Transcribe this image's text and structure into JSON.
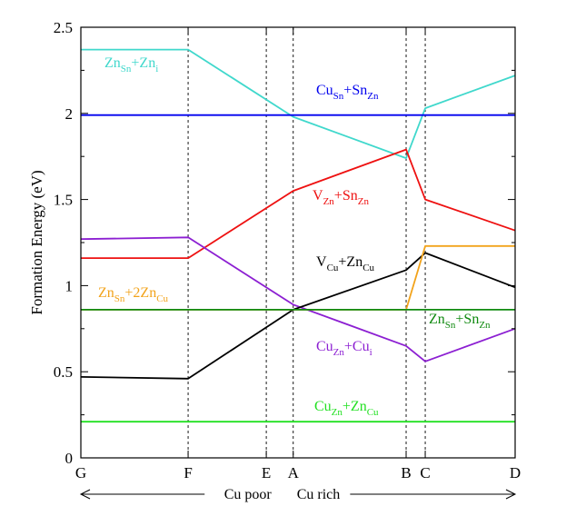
{
  "chart_data": {
    "type": "line",
    "ylabel": "Formation Energy (eV)",
    "ylim": [
      0,
      2.5
    ],
    "yticks": [
      0,
      0.5,
      1,
      1.5,
      2,
      2.5
    ],
    "ytick_labels": [
      "0",
      "0.5",
      "1",
      "1.5",
      "2",
      "2.5"
    ],
    "x_points": [
      {
        "label": "G",
        "pos": 0
      },
      {
        "label": "F",
        "pos": 0.247
      },
      {
        "label": "E",
        "pos": 0.427
      },
      {
        "label": "A",
        "pos": 0.489
      },
      {
        "label": "B",
        "pos": 0.749
      },
      {
        "label": "C",
        "pos": 0.793
      },
      {
        "label": "D",
        "pos": 1
      }
    ],
    "vlines_at": [
      "F",
      "E",
      "A",
      "B",
      "C"
    ],
    "direction_labels": {
      "left": "Cu poor",
      "right": "Cu rich"
    },
    "series": [
      {
        "name": "Zn_Sn + Zn_i",
        "label_main": [
          "Zn",
          "+Zn"
        ],
        "label_sub": [
          "Sn",
          "i"
        ],
        "color": "#40d8cc",
        "x": [
          0,
          0.247,
          0.489,
          0.749,
          0.793,
          1
        ],
        "y": [
          2.37,
          2.37,
          1.98,
          1.74,
          2.03,
          2.22
        ]
      },
      {
        "name": "Cu_Sn + Sn_Zn",
        "label_main": [
          "Cu",
          "+Sn"
        ],
        "label_sub": [
          "Sn",
          "Zn"
        ],
        "color": "#0000ee",
        "x": [
          0,
          1
        ],
        "y": [
          1.99,
          1.99
        ]
      },
      {
        "name": "V_Zn + Sn_Zn",
        "label_main": [
          "V",
          "+Sn"
        ],
        "label_sub": [
          "Zn",
          "Zn"
        ],
        "color": "#ee1111",
        "x": [
          0,
          0.247,
          0.489,
          0.749,
          0.793,
          1
        ],
        "y": [
          1.16,
          1.16,
          1.55,
          1.79,
          1.5,
          1.32
        ]
      },
      {
        "name": "Cu_Zn + Cu_i",
        "label_main": [
          "Cu",
          "+Cu"
        ],
        "label_sub": [
          "Zn",
          "i"
        ],
        "color": "#8c1fd2",
        "x": [
          0,
          0.247,
          0.489,
          0.749,
          0.793,
          1
        ],
        "y": [
          1.27,
          1.28,
          0.89,
          0.65,
          0.56,
          0.75
        ]
      },
      {
        "name": "V_Cu + Zn_Cu",
        "label_main": [
          "V",
          "+Zn"
        ],
        "label_sub": [
          "Cu",
          "Cu"
        ],
        "color": "#000000",
        "x": [
          0,
          0.247,
          0.489,
          0.749,
          0.793,
          1
        ],
        "y": [
          0.47,
          0.46,
          0.86,
          1.09,
          1.19,
          0.99
        ]
      },
      {
        "name": "Zn_Sn + 2Zn_Cu",
        "label_main": [
          "Zn",
          "+2Zn"
        ],
        "label_sub": [
          "Sn",
          "Cu"
        ],
        "color": "#f2a31b",
        "x": [
          0,
          0.749,
          0.793,
          1
        ],
        "y": [
          0.86,
          0.86,
          1.23,
          1.23
        ]
      },
      {
        "name": "Zn_Sn + Sn_Zn",
        "label_main": [
          "Zn",
          "+Sn"
        ],
        "label_sub": [
          "Sn",
          "Zn"
        ],
        "color": "#108a10",
        "x": [
          0,
          1
        ],
        "y": [
          0.86,
          0.86
        ]
      },
      {
        "name": "Cu_Zn + Zn_Cu",
        "label_main": [
          "Cu",
          "+Zn"
        ],
        "label_sub": [
          "Zn",
          "Cu"
        ],
        "color": "#22e022",
        "x": [
          0,
          1
        ],
        "y": [
          0.21,
          0.21
        ]
      }
    ]
  }
}
